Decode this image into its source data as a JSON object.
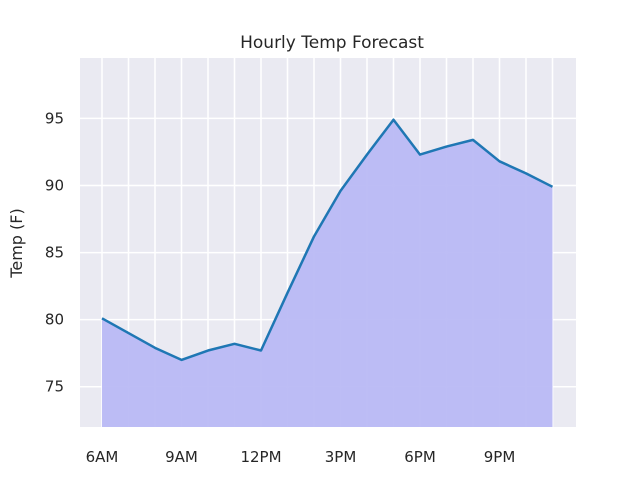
{
  "chart_data": {
    "type": "area",
    "title": "Hourly Temp Forecast",
    "xlabel": "",
    "ylabel": "Temp (F)",
    "x_tick_labels": [
      "6AM",
      "9AM",
      "12PM",
      "3PM",
      "6PM",
      "9PM"
    ],
    "y_ticks": [
      75,
      80,
      85,
      90,
      95
    ],
    "ylim": [
      72,
      99.5
    ],
    "grid": true,
    "series": [
      {
        "x": [
          "6AM",
          "7AM",
          "8AM",
          "9AM",
          "10AM",
          "11AM",
          "12PM",
          "1PM",
          "2PM",
          "3PM",
          "4PM",
          "5PM",
          "6PM",
          "7PM",
          "8PM",
          "9PM",
          "10PM",
          "11PM"
        ],
        "values": [
          80.1,
          79.0,
          77.9,
          77.0,
          77.7,
          78.2,
          77.7,
          82.0,
          86.2,
          89.6,
          92.3,
          94.9,
          92.3,
          92.9,
          93.4,
          91.8,
          90.9,
          89.9
        ]
      }
    ],
    "colors": {
      "line": "#1f77b4",
      "fill": "#b9b9f4",
      "plot_bg": "#eaeaf2",
      "grid": "#ffffff"
    }
  }
}
